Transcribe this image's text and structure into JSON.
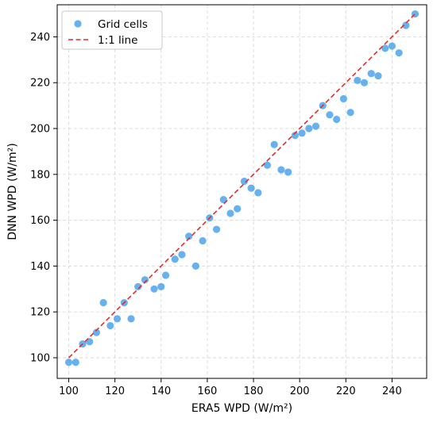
{
  "chart_data": {
    "type": "scatter",
    "xlabel": "ERA5 WPD (W/m²)",
    "ylabel": "DNN WPD (W/m²)",
    "xlim": [
      95,
      255
    ],
    "ylim": [
      91,
      254
    ],
    "xticks": [
      100,
      120,
      140,
      160,
      180,
      200,
      220,
      240
    ],
    "yticks": [
      100,
      120,
      140,
      160,
      180,
      200,
      220,
      240
    ],
    "xtick_labels": [
      "100",
      "120",
      "140",
      "160",
      "180",
      "200",
      "220",
      "240"
    ],
    "ytick_labels": [
      "100",
      "120",
      "140",
      "160",
      "180",
      "200",
      "220",
      "240"
    ],
    "grid": true,
    "legend_position": "top-left",
    "series": [
      {
        "name": "Grid cells",
        "kind": "scatter",
        "color": "#4da3ec",
        "points": [
          [
            100,
            98
          ],
          [
            103,
            98
          ],
          [
            106,
            106
          ],
          [
            109,
            107
          ],
          [
            112,
            111
          ],
          [
            115,
            124
          ],
          [
            118,
            114
          ],
          [
            121,
            117
          ],
          [
            124,
            124
          ],
          [
            127,
            117
          ],
          [
            130,
            131
          ],
          [
            133,
            134
          ],
          [
            137,
            130
          ],
          [
            140,
            131
          ],
          [
            142,
            136
          ],
          [
            146,
            143
          ],
          [
            149,
            145
          ],
          [
            152,
            153
          ],
          [
            155,
            140
          ],
          [
            158,
            151
          ],
          [
            161,
            161
          ],
          [
            164,
            156
          ],
          [
            167,
            169
          ],
          [
            170,
            163
          ],
          [
            173,
            165
          ],
          [
            176,
            177
          ],
          [
            179,
            174
          ],
          [
            182,
            172
          ],
          [
            186,
            184
          ],
          [
            189,
            193
          ],
          [
            192,
            182
          ],
          [
            195,
            181
          ],
          [
            198,
            197
          ],
          [
            201,
            198
          ],
          [
            204,
            200
          ],
          [
            207,
            201
          ],
          [
            210,
            210
          ],
          [
            213,
            206
          ],
          [
            216,
            204
          ],
          [
            219,
            213
          ],
          [
            222,
            207
          ],
          [
            225,
            221
          ],
          [
            228,
            220
          ],
          [
            231,
            224
          ],
          [
            234,
            223
          ],
          [
            237,
            235
          ],
          [
            240,
            236
          ],
          [
            243,
            233
          ],
          [
            246,
            245
          ],
          [
            250,
            250
          ]
        ]
      },
      {
        "name": "1:1 line",
        "kind": "line",
        "color": "#e32b2b",
        "style": "dashed",
        "points": [
          [
            100,
            100
          ],
          [
            250,
            250
          ]
        ]
      }
    ]
  }
}
